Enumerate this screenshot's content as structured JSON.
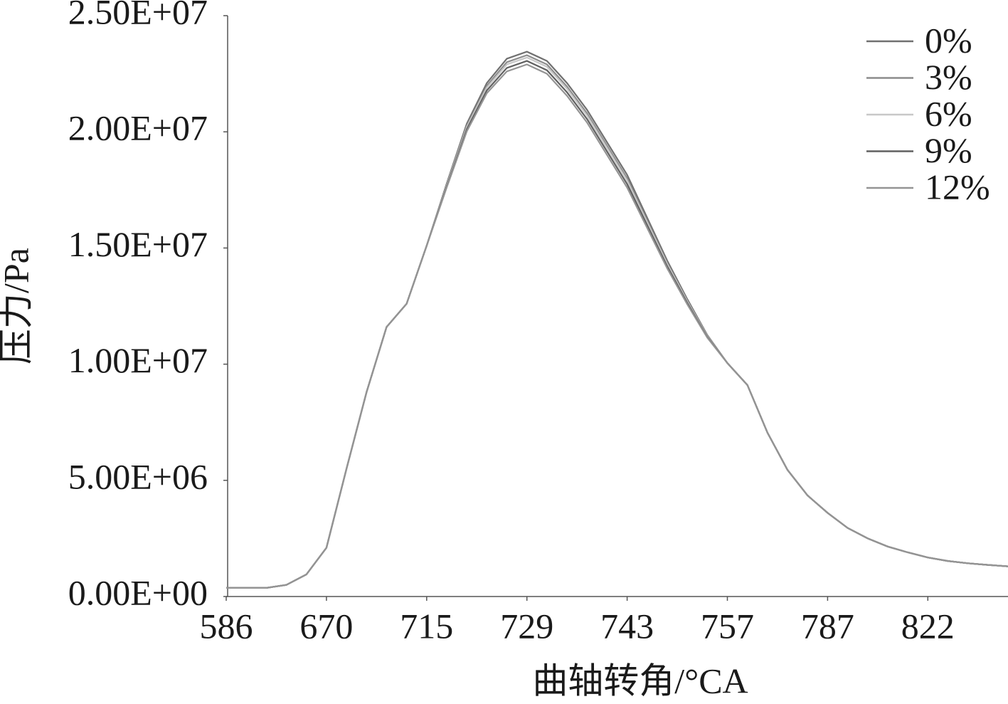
{
  "chart_data": {
    "type": "line",
    "x_label": "曲轴转角/°CA",
    "y_label": "压力/Pa",
    "categories": [
      "586",
      null,
      null,
      null,
      null,
      "670",
      null,
      null,
      null,
      null,
      "715",
      null,
      null,
      null,
      null,
      "729",
      null,
      null,
      null,
      null,
      "743",
      null,
      null,
      null,
      null,
      "757",
      null,
      null,
      null,
      null,
      "787",
      null,
      null,
      null,
      null,
      "822",
      null,
      null,
      null,
      null
    ],
    "ylim": [
      0,
      25000000.0
    ],
    "yticks": [
      {
        "value": 0,
        "label": "0.00E+00"
      },
      {
        "value": 5000000.0,
        "label": "5.00E+06"
      },
      {
        "value": 10000000.0,
        "label": "1.00E+07"
      },
      {
        "value": 15000000.0,
        "label": "1.50E+07"
      },
      {
        "value": 20000000.0,
        "label": "2.00E+07"
      },
      {
        "value": 25000000.0,
        "label": "2.50E+07"
      }
    ],
    "legend": "top-right",
    "series": [
      {
        "name": "0%",
        "color": "#707070",
        "values": [
          370000.0,
          370000.0,
          370000.0,
          500000.0,
          950000.0,
          2100000.0,
          5500000.0,
          8800000.0,
          11600000.0,
          12600000.0,
          15100000.0,
          17780000.0,
          20350000.0,
          22100000.0,
          23150000.0,
          23450000.0,
          23050000.0,
          22100000.0,
          20950000.0,
          19550000.0,
          18150000.0,
          16300000.0,
          14450000.0,
          12800000.0,
          11250000.0,
          10050000.0,
          9100000.0,
          7050000.0,
          5450000.0,
          4350000.0,
          3600000.0,
          2950000.0,
          2500000.0,
          2150000.0,
          1900000.0,
          1680000.0,
          1530000.0,
          1430000.0,
          1360000.0,
          1300000.0
        ]
      },
      {
        "name": "3%",
        "color": "#8c8c8c",
        "values": [
          370000.0,
          370000.0,
          370000.0,
          500000.0,
          950000.0,
          2100000.0,
          5500000.0,
          8800000.0,
          11600000.0,
          12600000.0,
          15100000.0,
          17730000.0,
          20260000.0,
          21980000.0,
          23000000.0,
          23300000.0,
          22900000.0,
          21950000.0,
          20800000.0,
          19400000.0,
          18000000.0,
          16180000.0,
          14360000.0,
          12740000.0,
          11220000.0,
          10050000.0,
          9100000.0,
          7050000.0,
          5450000.0,
          4350000.0,
          3600000.0,
          2950000.0,
          2500000.0,
          2150000.0,
          1900000.0,
          1680000.0,
          1530000.0,
          1430000.0,
          1360000.0,
          1300000.0
        ]
      },
      {
        "name": "6%",
        "color": "#c8c8c8",
        "values": [
          370000.0,
          370000.0,
          370000.0,
          500000.0,
          950000.0,
          2100000.0,
          5500000.0,
          8800000.0,
          11600000.0,
          12600000.0,
          15100000.0,
          17700000.0,
          20200000.0,
          21900000.0,
          22900000.0,
          23200000.0,
          22800000.0,
          21850000.0,
          20700000.0,
          19300000.0,
          17900000.0,
          16100000.0,
          14300000.0,
          12700000.0,
          11200000.0,
          10050000.0,
          9100000.0,
          7050000.0,
          5450000.0,
          4350000.0,
          3600000.0,
          2950000.0,
          2500000.0,
          2150000.0,
          1900000.0,
          1680000.0,
          1530000.0,
          1430000.0,
          1360000.0,
          1300000.0
        ]
      },
      {
        "name": "9%",
        "color": "#606060",
        "values": [
          370000.0,
          370000.0,
          370000.0,
          500000.0,
          950000.0,
          2100000.0,
          5500000.0,
          8800000.0,
          11600000.0,
          12600000.0,
          15100000.0,
          17650000.0,
          20110000.0,
          21780000.0,
          22750000.0,
          23050000.0,
          22650000.0,
          21700000.0,
          20550000.0,
          19150000.0,
          17750000.0,
          15980000.0,
          14210000.0,
          12640000.0,
          11170000.0,
          10050000.0,
          9100000.0,
          7050000.0,
          5450000.0,
          4350000.0,
          3600000.0,
          2950000.0,
          2500000.0,
          2150000.0,
          1900000.0,
          1680000.0,
          1530000.0,
          1430000.0,
          1360000.0,
          1300000.0
        ]
      },
      {
        "name": "12%",
        "color": "#949494",
        "values": [
          370000.0,
          370000.0,
          370000.0,
          500000.0,
          950000.0,
          2100000.0,
          5500000.0,
          8800000.0,
          11600000.0,
          12600000.0,
          15100000.0,
          17610000.0,
          20020000.0,
          21660000.0,
          22600000.0,
          22900000.0,
          22500000.0,
          21550000.0,
          20400000.0,
          19000000.0,
          17600000.0,
          15860000.0,
          14120000.0,
          12580000.0,
          11140000.0,
          10050000.0,
          9100000.0,
          7050000.0,
          5450000.0,
          4350000.0,
          3600000.0,
          2950000.0,
          2500000.0,
          2150000.0,
          1900000.0,
          1680000.0,
          1530000.0,
          1430000.0,
          1360000.0,
          1300000.0
        ]
      }
    ]
  }
}
